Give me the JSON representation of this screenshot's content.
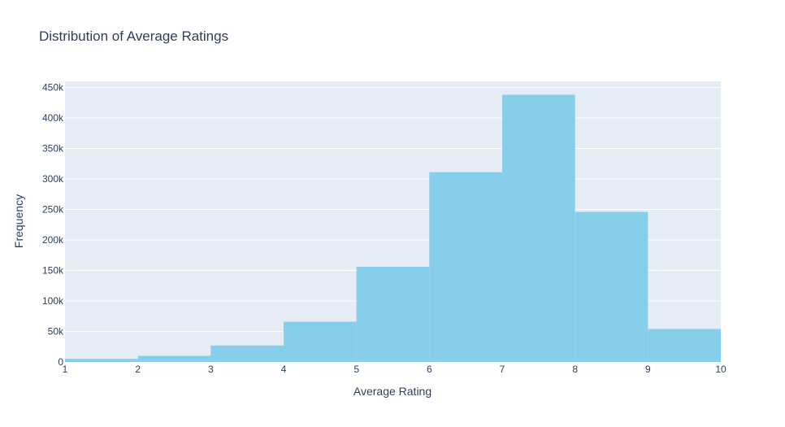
{
  "chart_data": {
    "type": "bar",
    "subtype": "histogram",
    "title": "Distribution of Average Ratings",
    "xlabel": "Average Rating",
    "ylabel": "Frequency",
    "bin_edges": [
      1,
      2,
      3,
      4,
      5,
      6,
      7,
      8,
      9,
      10
    ],
    "values": [
      5000,
      10000,
      27000,
      66000,
      156000,
      311000,
      438000,
      246000,
      54000
    ],
    "xlim": [
      1,
      10
    ],
    "ylim": [
      0,
      460000
    ],
    "x_ticks": [
      1,
      2,
      3,
      4,
      5,
      6,
      7,
      8,
      9,
      10
    ],
    "y_ticks": [
      0,
      50000,
      100000,
      150000,
      200000,
      250000,
      300000,
      350000,
      400000,
      450000
    ],
    "y_tick_labels": [
      "0",
      "50k",
      "100k",
      "150k",
      "200k",
      "250k",
      "300k",
      "350k",
      "400k",
      "450k"
    ],
    "grid": true,
    "colors": {
      "bar": "#87ceeb",
      "plot_bg": "#e5ecf6",
      "grid": "#ffffff",
      "text": "#2a3f5f"
    }
  }
}
